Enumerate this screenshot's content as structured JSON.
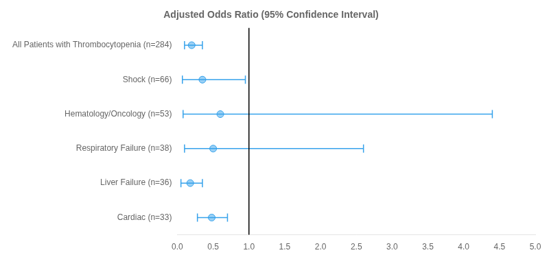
{
  "chart_data": {
    "type": "forest",
    "title": "Adjusted Odds Ratio (95% Confidence Interval)",
    "categories": [
      "All Patients with Thrombocytopenia (n=284)",
      "Shock (n=66)",
      "Hematology/Oncology (n=53)",
      "Respiratory Failure (n=38)",
      "Liver Failure (n=36)",
      "Cardiac (n=33)"
    ],
    "values": [
      0.2,
      0.35,
      0.6,
      0.5,
      0.18,
      0.48
    ],
    "ci_lower": [
      0.1,
      0.07,
      0.08,
      0.1,
      0.05,
      0.28
    ],
    "ci_upper": [
      0.35,
      0.95,
      4.4,
      2.6,
      0.35,
      0.7
    ],
    "reference_x": 1.0,
    "xlim": [
      0.0,
      5.0
    ],
    "xticks": [
      {
        "value": 0.0,
        "label": "0.0"
      },
      0.5,
      {
        "value": 1.0,
        "label": "1.0"
      },
      1.5,
      {
        "value": 2.0,
        "label": "2.0"
      },
      2.5,
      {
        "value": 3.0,
        "label": "3.0"
      },
      3.5,
      {
        "value": 4.0,
        "label": "4.0"
      },
      4.5,
      {
        "value": 5.0,
        "label": "5.0"
      }
    ],
    "grid": false
  }
}
